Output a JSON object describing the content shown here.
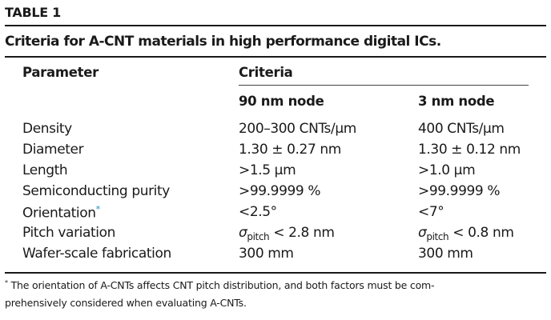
{
  "table_label": "TABLE 1",
  "caption": "Criteria for A-CNT materials in high performance digital ICs.",
  "header": {
    "parameter": "Parameter",
    "criteria": "Criteria",
    "col1": "90 nm node",
    "col2": "3 nm node"
  },
  "rows": [
    {
      "param": "Density",
      "v1": "200–300 CNTs/μm",
      "v2": "400 CNTs/μm"
    },
    {
      "param": "Diameter",
      "v1": "1.30 ± 0.27 nm",
      "v2": "1.30 ± 0.12 nm"
    },
    {
      "param": "Length",
      "v1": ">1.5 μm",
      "v2": ">1.0 μm"
    },
    {
      "param": "Semiconducting purity",
      "v1": ">99.9999 %",
      "v2": ">99.9999 %"
    },
    {
      "param": "Orientation",
      "mark": "*",
      "v1": "<2.5°",
      "v2": "<7°"
    },
    {
      "param": "Pitch variation",
      "sym": "σ",
      "subscript": "pitch",
      "v1": " < 2.8 nm",
      "v2": " < 0.8 nm"
    },
    {
      "param": "Wafer-scale fabrication",
      "v1": "300 mm",
      "v2": "300 mm"
    }
  ],
  "footnote": {
    "mark": "*",
    "line1": "The orientation of A-CNTs affects CNT pitch distribution, and both factors must be com-",
    "line2": "prehensively considered when evaluating A-CNTs."
  },
  "colors": {
    "footnote_mark": "#1f8fc4"
  }
}
